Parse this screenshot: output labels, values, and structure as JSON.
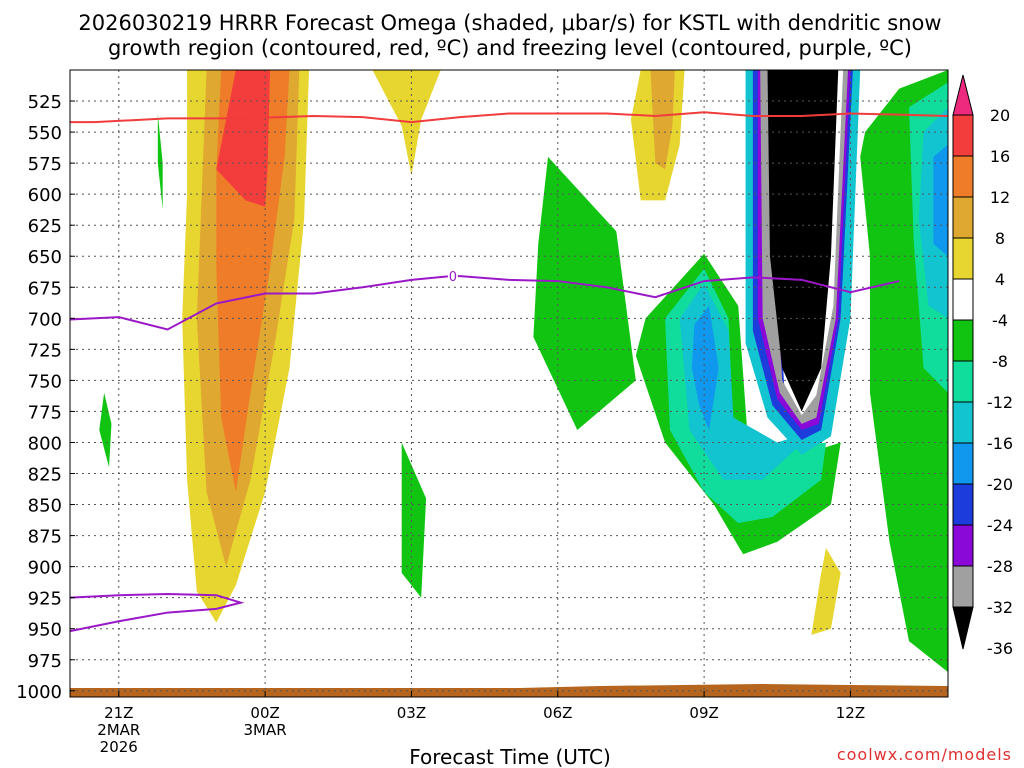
{
  "chart_data": {
    "type": "heatmap",
    "title_lines": [
      "2026030219 HRRR Forecast Omega (shaded, μbar/s) for KSTL with dendritic snow",
      "growth region (contoured, red, ºC) and freezing level (contoured, purple, ºC)"
    ],
    "xlabel": "Forecast Time (UTC)",
    "credit": "coolwx.com/models",
    "x_range_hours": [
      -4.0,
      14.0
    ],
    "y_range_hpa": [
      500,
      1005
    ],
    "x_ticks": [
      {
        "hour": -3,
        "lines": [
          "21Z",
          "2MAR",
          "2026"
        ]
      },
      {
        "hour": 0,
        "lines": [
          "00Z",
          "3MAR"
        ]
      },
      {
        "hour": 3,
        "lines": [
          "03Z"
        ]
      },
      {
        "hour": 6,
        "lines": [
          "06Z"
        ]
      },
      {
        "hour": 9,
        "lines": [
          "09Z"
        ]
      },
      {
        "hour": 12,
        "lines": [
          "12Z"
        ]
      }
    ],
    "y_ticks": [
      525,
      550,
      575,
      600,
      625,
      650,
      675,
      700,
      725,
      750,
      775,
      800,
      825,
      850,
      875,
      900,
      925,
      950,
      975,
      1000
    ],
    "colorbar": {
      "labels": [
        "20",
        "16",
        "12",
        "8",
        "4",
        "-4",
        "-8",
        "-12",
        "-16",
        "-20",
        "-24",
        "-28",
        "-32",
        "-36"
      ],
      "colors": [
        "#ee2a7e",
        "#f33c3c",
        "#ef7c28",
        "#dfa830",
        "#e8d630",
        "#ffffff",
        "#12c412",
        "#10dc9c",
        "#11c4d0",
        "#1098ee",
        "#1c3cdc",
        "#8a08d8",
        "#a0a0a0",
        "#000000"
      ]
    },
    "series": [
      {
        "name": "dendritic snow growth region (red contour, ºC)",
        "color": "#f03c3c",
        "points": [
          [
            -4.0,
            542
          ],
          [
            -3.5,
            542
          ],
          [
            -2.0,
            539
          ],
          [
            -0.5,
            539
          ],
          [
            1.0,
            537
          ],
          [
            2.0,
            538
          ],
          [
            3.0,
            542
          ],
          [
            4.0,
            538
          ],
          [
            5.0,
            535
          ],
          [
            7.0,
            535
          ],
          [
            8.0,
            537
          ],
          [
            9.0,
            534
          ],
          [
            10.0,
            537
          ],
          [
            11.0,
            537
          ],
          [
            12.0,
            535
          ],
          [
            14.0,
            537
          ]
        ]
      },
      {
        "name": "freezing level (purple contour, ºC)",
        "color": "#9b18c8",
        "points": [
          [
            -4.0,
            701
          ],
          [
            -3.0,
            699
          ],
          [
            -2.0,
            709
          ],
          [
            -1.0,
            688
          ],
          [
            0.0,
            680
          ],
          [
            1.0,
            680
          ],
          [
            2.0,
            675
          ],
          [
            3.0,
            669
          ],
          [
            3.8,
            666
          ],
          [
            4.0,
            666
          ],
          [
            5.0,
            669
          ],
          [
            6.0,
            670
          ],
          [
            7.0,
            675
          ],
          [
            8.0,
            683
          ],
          [
            9.0,
            670
          ],
          [
            10.0,
            667
          ],
          [
            11.0,
            669
          ],
          [
            12.0,
            679
          ],
          [
            13.0,
            670
          ]
        ]
      },
      {
        "name": "freezing level low-level segment (purple contour, ºC)",
        "color": "#9b18c8",
        "points": [
          [
            -4.0,
            925
          ],
          [
            -3.0,
            923
          ],
          [
            -2.0,
            922
          ],
          [
            -1.0,
            923
          ],
          [
            -0.5,
            929
          ],
          [
            -1.0,
            934
          ],
          [
            -2.0,
            937
          ],
          [
            -3.0,
            944
          ],
          [
            -4.0,
            952
          ]
        ]
      }
    ],
    "contour_labels": [
      {
        "hour": 3.85,
        "hpa": 666,
        "text": "0"
      }
    ],
    "omega_regions": [
      {
        "level": "4",
        "color": "#e8d630",
        "points": [
          [
            -1.6,
            500
          ],
          [
            0.9,
            500
          ],
          [
            0.8,
            620
          ],
          [
            0.5,
            740
          ],
          [
            0.0,
            840
          ],
          [
            -0.6,
            915
          ],
          [
            -1.0,
            945
          ],
          [
            -1.4,
            920
          ],
          [
            -1.6,
            830
          ],
          [
            -1.7,
            700
          ],
          [
            -1.6,
            600
          ]
        ]
      },
      {
        "level": "8",
        "color": "#dfa830",
        "points": [
          [
            -1.2,
            500
          ],
          [
            0.7,
            500
          ],
          [
            0.6,
            620
          ],
          [
            0.2,
            720
          ],
          [
            -0.3,
            830
          ],
          [
            -0.8,
            900
          ],
          [
            -1.2,
            840
          ],
          [
            -1.4,
            700
          ],
          [
            -1.3,
            600
          ]
        ]
      },
      {
        "level": "12",
        "color": "#ef7c28",
        "points": [
          [
            -0.9,
            500
          ],
          [
            0.5,
            500
          ],
          [
            0.4,
            570
          ],
          [
            0.1,
            660
          ],
          [
            -0.3,
            760
          ],
          [
            -0.6,
            840
          ],
          [
            -0.9,
            780
          ],
          [
            -1.0,
            660
          ],
          [
            -1.0,
            580
          ]
        ]
      },
      {
        "level": "16",
        "color": "#f33c3c",
        "points": [
          [
            -0.6,
            500
          ],
          [
            0.1,
            500
          ],
          [
            0.05,
            580
          ],
          [
            0.0,
            610
          ],
          [
            -0.4,
            605
          ],
          [
            -1.0,
            580
          ],
          [
            -0.8,
            540
          ]
        ]
      },
      {
        "level": "4",
        "color": "#e8d630",
        "points": [
          [
            2.2,
            500
          ],
          [
            3.6,
            500
          ],
          [
            3.2,
            540
          ],
          [
            3.0,
            585
          ],
          [
            2.8,
            545
          ]
        ]
      },
      {
        "level": "4",
        "color": "#e8d630",
        "points": [
          [
            7.7,
            500
          ],
          [
            8.6,
            500
          ],
          [
            8.5,
            560
          ],
          [
            8.2,
            605
          ],
          [
            7.7,
            605
          ],
          [
            7.5,
            540
          ]
        ]
      },
      {
        "level": "8",
        "color": "#dfa830",
        "points": [
          [
            7.9,
            500
          ],
          [
            8.4,
            500
          ],
          [
            8.35,
            545
          ],
          [
            8.2,
            580
          ],
          [
            8.0,
            575
          ]
        ]
      },
      {
        "level": "4",
        "color": "#e8d630",
        "points": [
          [
            11.5,
            885
          ],
          [
            11.8,
            905
          ],
          [
            11.6,
            950
          ],
          [
            11.2,
            955
          ],
          [
            11.4,
            905
          ]
        ]
      },
      {
        "level": "-4",
        "color": "#12c412",
        "points": [
          [
            -2.2,
            535
          ],
          [
            -2.1,
            575
          ],
          [
            -2.1,
            612
          ],
          [
            -2.2,
            575
          ]
        ]
      },
      {
        "level": "-4",
        "color": "#12c412",
        "points": [
          [
            -3.3,
            760
          ],
          [
            -3.15,
            785
          ],
          [
            -3.2,
            820
          ],
          [
            -3.4,
            790
          ]
        ]
      },
      {
        "level": "-4",
        "color": "#12c412",
        "points": [
          [
            5.8,
            570
          ],
          [
            7.2,
            630
          ],
          [
            7.6,
            750
          ],
          [
            6.4,
            790
          ],
          [
            5.5,
            715
          ],
          [
            5.6,
            640
          ]
        ]
      },
      {
        "level": "-4",
        "color": "#12c412",
        "points": [
          [
            2.8,
            800
          ],
          [
            3.3,
            845
          ],
          [
            3.2,
            925
          ],
          [
            2.8,
            905
          ]
        ]
      },
      {
        "level": "-4",
        "color": "#12c412",
        "points": [
          [
            7.8,
            700
          ],
          [
            9.0,
            648
          ],
          [
            9.7,
            690
          ],
          [
            9.9,
            800
          ],
          [
            11.0,
            810
          ],
          [
            11.8,
            800
          ],
          [
            11.6,
            850
          ],
          [
            10.5,
            880
          ],
          [
            9.8,
            890
          ],
          [
            9.2,
            850
          ],
          [
            8.2,
            800
          ],
          [
            7.6,
            730
          ]
        ]
      },
      {
        "level": "-4",
        "color": "#12c412",
        "points": [
          [
            12.2,
            570
          ],
          [
            12.3,
            550
          ],
          [
            13.0,
            515
          ],
          [
            14.0,
            500
          ],
          [
            14.0,
            985
          ],
          [
            13.2,
            960
          ],
          [
            12.8,
            880
          ],
          [
            12.4,
            760
          ],
          [
            12.4,
            650
          ]
        ]
      },
      {
        "level": "-8",
        "color": "#10dc9c",
        "points": [
          [
            8.2,
            700
          ],
          [
            9.0,
            660
          ],
          [
            9.5,
            700
          ],
          [
            9.6,
            790
          ],
          [
            10.5,
            805
          ],
          [
            11.5,
            800
          ],
          [
            11.4,
            830
          ],
          [
            10.4,
            860
          ],
          [
            9.7,
            865
          ],
          [
            9.0,
            840
          ],
          [
            8.3,
            790
          ]
        ]
      },
      {
        "level": "-8",
        "color": "#10dc9c",
        "points": [
          [
            13.2,
            530
          ],
          [
            14.0,
            510
          ],
          [
            14.0,
            760
          ],
          [
            13.5,
            740
          ],
          [
            13.3,
            640
          ]
        ]
      },
      {
        "level": "-12",
        "color": "#11c4d0",
        "points": [
          [
            8.5,
            700
          ],
          [
            9.0,
            672
          ],
          [
            9.5,
            710
          ],
          [
            9.6,
            780
          ],
          [
            10.5,
            800
          ],
          [
            11.3,
            790
          ],
          [
            10.2,
            830
          ],
          [
            9.4,
            830
          ],
          [
            8.7,
            790
          ]
        ]
      },
      {
        "level": "-12",
        "color": "#11c4d0",
        "points": [
          [
            13.5,
            550
          ],
          [
            14.0,
            530
          ],
          [
            14.0,
            700
          ],
          [
            13.6,
            690
          ],
          [
            13.4,
            620
          ]
        ]
      },
      {
        "level": "-16",
        "color": "#1098ee",
        "points": [
          [
            8.8,
            705
          ],
          [
            9.1,
            690
          ],
          [
            9.3,
            740
          ],
          [
            9.1,
            790
          ],
          [
            8.9,
            770
          ],
          [
            8.75,
            740
          ]
        ]
      },
      {
        "level": "-16",
        "color": "#1098ee",
        "points": [
          [
            13.7,
            570
          ],
          [
            14.0,
            560
          ],
          [
            14.0,
            650
          ],
          [
            13.7,
            640
          ]
        ]
      },
      {
        "level": "-12",
        "color": "#11c4d0",
        "points": [
          [
            9.85,
            500
          ],
          [
            10.2,
            500
          ],
          [
            10.4,
            620
          ],
          [
            10.6,
            760
          ],
          [
            11.0,
            790
          ],
          [
            11.4,
            780
          ],
          [
            11.8,
            700
          ],
          [
            12.0,
            500
          ],
          [
            12.2,
            500
          ],
          [
            12.0,
            700
          ],
          [
            11.6,
            795
          ],
          [
            11.0,
            810
          ],
          [
            10.3,
            780
          ],
          [
            9.85,
            720
          ]
        ]
      },
      {
        "level": "-24",
        "color": "#1c3cdc",
        "points": [
          [
            10.0,
            500
          ],
          [
            10.25,
            500
          ],
          [
            10.45,
            620
          ],
          [
            10.65,
            760
          ],
          [
            11.0,
            785
          ],
          [
            11.35,
            770
          ],
          [
            11.75,
            690
          ],
          [
            11.95,
            500
          ],
          [
            12.05,
            500
          ],
          [
            11.8,
            700
          ],
          [
            11.4,
            790
          ],
          [
            11.0,
            798
          ],
          [
            10.4,
            770
          ],
          [
            10.0,
            710
          ]
        ]
      },
      {
        "level": "-28",
        "color": "#8a08d8",
        "points": [
          [
            10.1,
            500
          ],
          [
            10.3,
            500
          ],
          [
            10.45,
            620
          ],
          [
            10.6,
            750
          ],
          [
            11.0,
            780
          ],
          [
            11.35,
            765
          ],
          [
            11.7,
            690
          ],
          [
            11.9,
            500
          ],
          [
            12.0,
            500
          ],
          [
            11.75,
            700
          ],
          [
            11.35,
            785
          ],
          [
            11.0,
            790
          ],
          [
            10.5,
            765
          ],
          [
            10.1,
            700
          ]
        ]
      },
      {
        "level": "-32",
        "color": "#a0a0a0",
        "points": [
          [
            10.15,
            500
          ],
          [
            10.3,
            500
          ],
          [
            10.4,
            620
          ],
          [
            10.6,
            750
          ],
          [
            11.0,
            778
          ],
          [
            11.3,
            762
          ],
          [
            11.65,
            690
          ],
          [
            11.85,
            500
          ],
          [
            11.95,
            500
          ],
          [
            11.7,
            700
          ],
          [
            11.3,
            780
          ],
          [
            11.0,
            785
          ],
          [
            10.55,
            760
          ],
          [
            10.2,
            700
          ]
        ]
      },
      {
        "level": "-36",
        "color": "#000000",
        "points": [
          [
            10.3,
            500
          ],
          [
            11.75,
            500
          ],
          [
            11.6,
            650
          ],
          [
            11.4,
            740
          ],
          [
            11.0,
            775
          ],
          [
            10.6,
            740
          ],
          [
            10.35,
            650
          ]
        ]
      }
    ]
  }
}
